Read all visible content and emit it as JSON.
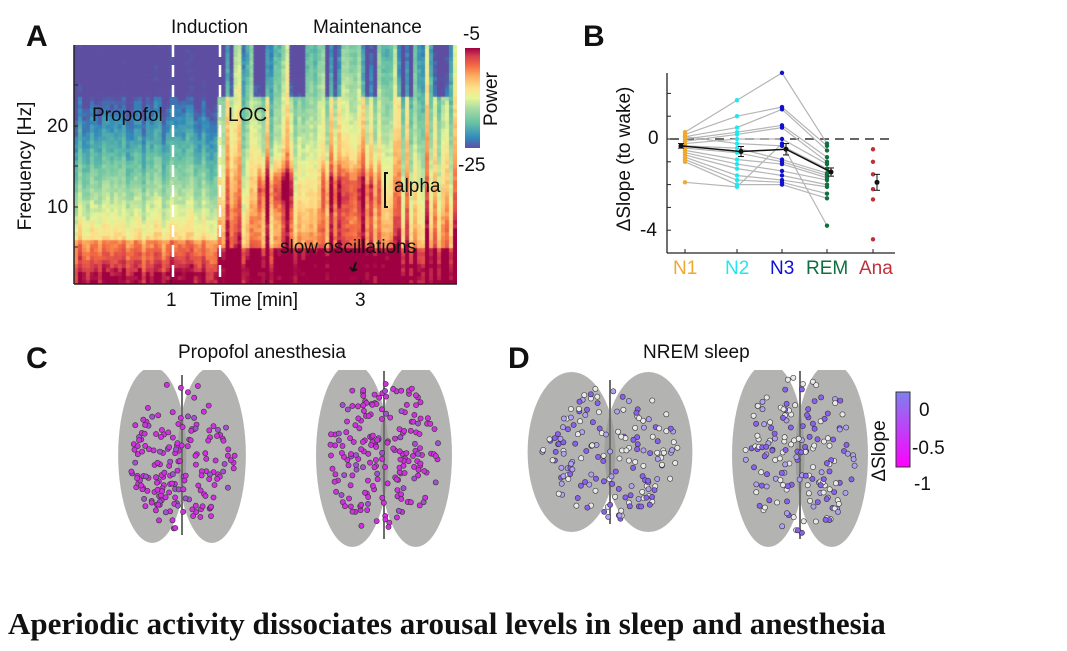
{
  "panels": {
    "A": {
      "label": "A"
    },
    "B": {
      "label": "B"
    },
    "C": {
      "label": "C",
      "title": "Propofol anesthesia"
    },
    "D": {
      "label": "D",
      "title": "NREM sleep"
    }
  },
  "caption": "Aperiodic activity dissociates arousal levels in sleep and anesthesia",
  "chart_data": [
    {
      "type": "heatmap",
      "panel": "A",
      "xlabel": "Time [min]",
      "ylabel": "Frequency [Hz]",
      "xlim": [
        0,
        4
      ],
      "ylim": [
        0.5,
        30
      ],
      "xticks": [
        "1",
        "3"
      ],
      "yticks": [
        "10",
        "20"
      ],
      "colorbar": {
        "label": "Power",
        "min_label": "-25",
        "max_label": "-5",
        "clim": [
          -25,
          -5
        ],
        "colormap": "spectral"
      },
      "phases": [
        "Induction",
        "Maintenance"
      ],
      "markers": [
        {
          "time": 1.0
        },
        {
          "time": 1.5
        }
      ],
      "annotations": [
        "Propofol",
        "LOC",
        "alpha",
        "slow oscillations"
      ]
    },
    {
      "type": "scatter",
      "panel": "B",
      "ylabel": "ΔSlope (to wake)",
      "ylim": [
        -5,
        3
      ],
      "yticks": [
        "0",
        "-4"
      ],
      "reference_line": 0,
      "categories": [
        "N1",
        "N2",
        "N3",
        "REM",
        "Ana"
      ],
      "category_colors": [
        "#f0a830",
        "#22e6f0",
        "#1010d0",
        "#0e7040",
        "#c0303a"
      ],
      "paired_subjects": [
        [
          0.3,
          1.7,
          2.9,
          -0.2
        ],
        [
          0.2,
          1.0,
          1.4,
          -0.3
        ],
        [
          0.1,
          0.5,
          1.3,
          -0.5
        ],
        [
          0.0,
          0.3,
          0.6,
          -0.8
        ],
        [
          -0.1,
          0.2,
          0.5,
          -1.0
        ],
        [
          -0.2,
          0.0,
          0.0,
          -1.1
        ],
        [
          0.1,
          -0.2,
          -0.3,
          -1.3
        ],
        [
          -0.3,
          -0.4,
          -0.9,
          -1.5
        ],
        [
          -0.4,
          -0.6,
          -1.0,
          -1.6
        ],
        [
          -0.5,
          -0.9,
          -1.1,
          -1.7
        ],
        [
          -0.6,
          -1.1,
          -1.4,
          -1.8
        ],
        [
          -0.7,
          -1.3,
          -1.6,
          -2.0
        ],
        [
          -0.8,
          -1.6,
          -1.8,
          -2.1
        ],
        [
          -0.9,
          -1.8,
          -1.9,
          -2.4
        ],
        [
          -1.0,
          -2.0,
          -2.0,
          -2.6
        ],
        [
          -1.9,
          -2.1,
          -0.2,
          -3.8
        ]
      ],
      "ana_values": [
        -0.45,
        -1.0,
        -1.55,
        -2.2,
        -2.65,
        -4.4
      ],
      "means": [
        -0.3,
        -0.55,
        -0.45,
        -1.45,
        -1.9
      ],
      "errors": [
        0.1,
        0.22,
        0.25,
        0.18,
        0.35
      ]
    }
  ],
  "brain_colorbar": {
    "label": "ΔSlope",
    "ticks": [
      "0",
      "-0.5",
      "-1"
    ],
    "colors": [
      "#8080f0",
      "#ff00ff"
    ]
  },
  "colors": {
    "electrode_anesthesia": "#d030e0",
    "electrode_sleep_low": "#e8e8e8",
    "electrode_sleep_high": "#8a60f0",
    "brain": "#9a9a98"
  }
}
